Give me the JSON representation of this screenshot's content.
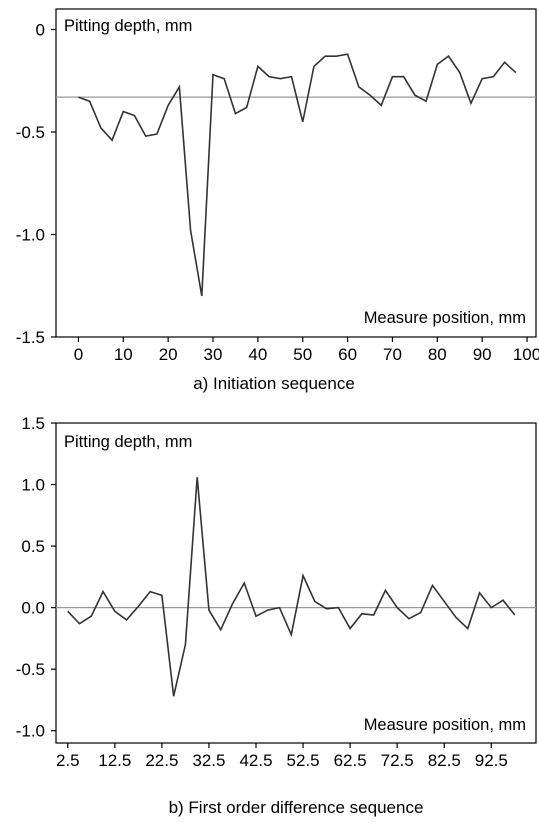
{
  "chart_data": [
    {
      "type": "line",
      "caption": "a) Initiation sequence",
      "ylabel": "Pitting depth, mm",
      "xlabel": "Measure position, mm",
      "xlim": [
        -5,
        102
      ],
      "ylim": [
        -1.5,
        0.1
      ],
      "xticks": [
        0,
        10,
        20,
        30,
        40,
        50,
        60,
        70,
        80,
        90,
        100
      ],
      "yticks": [
        0,
        -0.5,
        -1.0,
        -1.5
      ],
      "ytick_labels": [
        "0",
        "-0.5",
        "-1.0",
        "-1.5"
      ],
      "reference_line": -0.33,
      "colors": {
        "line": "#333333",
        "reference": "#999999"
      },
      "series": [
        {
          "x": [
            0,
            2.5,
            5,
            7.5,
            10,
            12.5,
            15,
            17.5,
            20,
            22.5,
            25,
            27.5,
            30,
            32.5,
            35,
            37.5,
            40,
            42.5,
            45,
            47.5,
            50,
            52.5,
            55,
            57.5,
            60,
            62.5,
            65,
            67.5,
            70,
            72.5,
            75,
            77.5,
            80,
            82.5,
            85,
            87.5,
            90,
            92.5,
            95,
            97.5
          ],
          "y": [
            -0.33,
            -0.35,
            -0.48,
            -0.54,
            -0.4,
            -0.42,
            -0.52,
            -0.51,
            -0.37,
            -0.28,
            -0.98,
            -1.3,
            -0.22,
            -0.24,
            -0.41,
            -0.38,
            -0.18,
            -0.23,
            -0.24,
            -0.23,
            -0.45,
            -0.18,
            -0.13,
            -0.13,
            -0.12,
            -0.28,
            -0.32,
            -0.37,
            -0.23,
            -0.23,
            -0.32,
            -0.35,
            -0.17,
            -0.13,
            -0.21,
            -0.36,
            -0.24,
            -0.23,
            -0.16,
            -0.21
          ]
        }
      ]
    },
    {
      "type": "line",
      "caption": "b) First order difference sequence",
      "ylabel": "Pitting depth, mm",
      "xlabel": "Measure position, mm",
      "xlim": [
        0,
        102
      ],
      "ylim": [
        -1.1,
        1.5
      ],
      "xticks": [
        2.5,
        12.5,
        22.5,
        32.5,
        42.5,
        52.5,
        62.5,
        72.5,
        82.5,
        92.5
      ],
      "yticks": [
        1.5,
        1.0,
        0.5,
        0.0,
        -0.5,
        -1.0
      ],
      "ytick_labels": [
        "1.5",
        "1.0",
        "0.5",
        "0.0",
        "-0.5",
        "-1.0"
      ],
      "reference_line": 0.0,
      "colors": {
        "line": "#333333",
        "reference": "#999999"
      },
      "series": [
        {
          "x": [
            2.5,
            5,
            7.5,
            10,
            12.5,
            15,
            17.5,
            20,
            22.5,
            25,
            27.5,
            30,
            32.5,
            35,
            37.5,
            40,
            42.5,
            45,
            47.5,
            50,
            52.5,
            55,
            57.5,
            60,
            62.5,
            65,
            67.5,
            70,
            72.5,
            75,
            77.5,
            80,
            82.5,
            85,
            87.5,
            90,
            92.5,
            95,
            97.5
          ],
          "y": [
            -0.03,
            -0.13,
            -0.07,
            0.13,
            -0.03,
            -0.1,
            0.01,
            0.13,
            0.1,
            -0.72,
            -0.3,
            1.06,
            -0.02,
            -0.18,
            0.03,
            0.2,
            -0.07,
            -0.02,
            0.0,
            -0.22,
            0.26,
            0.05,
            -0.01,
            0.0,
            -0.17,
            -0.05,
            -0.06,
            0.14,
            0.0,
            -0.09,
            -0.04,
            0.18,
            0.05,
            -0.08,
            -0.17,
            0.12,
            0.0,
            0.06,
            -0.06
          ]
        }
      ]
    }
  ]
}
